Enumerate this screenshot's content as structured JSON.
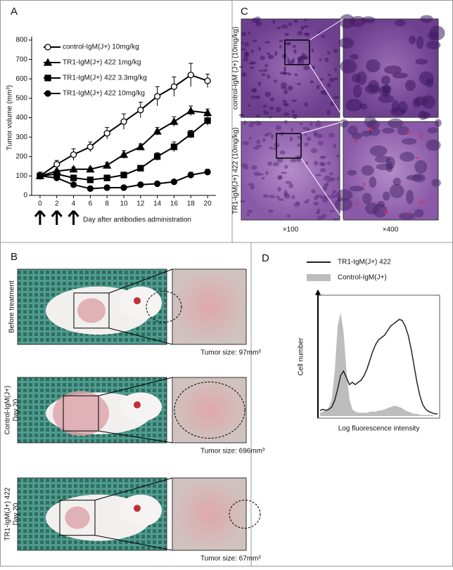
{
  "panel_labels": [
    "A",
    "B",
    "C",
    "D"
  ],
  "chart_data": [
    {
      "type": "line",
      "ylabel": "Tumor volume (mm³)",
      "xlabel": "Day after antibodies administration",
      "x": [
        0,
        2,
        4,
        6,
        8,
        10,
        12,
        14,
        16,
        18,
        20
      ],
      "xlim": [
        -1,
        21
      ],
      "xticks": [
        0,
        2,
        4,
        6,
        8,
        10,
        12,
        14,
        16,
        18,
        20
      ],
      "ylim": [
        0,
        800
      ],
      "yticks": [
        0,
        100,
        200,
        300,
        400,
        500,
        600,
        700,
        800
      ],
      "arrows_x": [
        0,
        2,
        4
      ],
      "legend": "upper left",
      "series": [
        {
          "name": "control-IgM(J+) 10mg/kg",
          "color": "#000000",
          "marker": "open-circle",
          "values": [
            100,
            160,
            210,
            250,
            320,
            380,
            440,
            510,
            560,
            620,
            590
          ],
          "errors": [
            20,
            20,
            30,
            25,
            30,
            40,
            40,
            50,
            50,
            60,
            35
          ]
        },
        {
          "name": "TR1-IgM(J+) 422  1mg/kg",
          "color": "#000000",
          "marker": "triangle",
          "values": [
            100,
            125,
            135,
            135,
            155,
            210,
            250,
            330,
            380,
            435,
            425
          ],
          "errors": [
            10,
            10,
            10,
            10,
            15,
            20,
            15,
            20,
            25,
            25,
            20
          ]
        },
        {
          "name": "TR1-IgM(J+) 422  3.3mg/kg",
          "color": "#000000",
          "marker": "square",
          "values": [
            100,
            110,
            90,
            80,
            90,
            105,
            140,
            200,
            250,
            315,
            385
          ],
          "errors": [
            10,
            10,
            10,
            10,
            10,
            10,
            10,
            20,
            25,
            20,
            25
          ]
        },
        {
          "name": "TR1-IgM(J+) 422  10mg/kg",
          "color": "#000000",
          "marker": "filled-circle",
          "values": [
            100,
            90,
            55,
            35,
            40,
            40,
            55,
            60,
            70,
            105,
            120
          ],
          "errors": [
            10,
            10,
            10,
            5,
            5,
            5,
            5,
            5,
            10,
            15,
            15
          ]
        }
      ]
    },
    {
      "type": "line",
      "ylabel": "Cell number",
      "xlabel": "Log fluorescence intensity",
      "x": [
        0,
        1,
        2,
        3,
        4,
        5,
        6,
        7,
        8,
        9,
        10,
        11,
        12,
        13,
        14,
        15,
        16,
        17,
        18,
        19,
        20,
        21,
        22,
        23,
        24,
        25,
        26,
        27,
        28,
        29,
        30,
        31,
        32,
        33,
        34,
        35,
        36,
        37,
        38,
        39,
        40
      ],
      "xlim": [
        0,
        40
      ],
      "ylim": [
        0,
        100
      ],
      "legend": "above",
      "series": [
        {
          "name": "TR1-IgM(J+) 422",
          "color": "#222222",
          "fill": false,
          "values": [
            5,
            6,
            5,
            6,
            8,
            14,
            24,
            36,
            40,
            34,
            28,
            30,
            28,
            30,
            32,
            36,
            42,
            50,
            58,
            64,
            68,
            70,
            72,
            76,
            80,
            82,
            84,
            86,
            85,
            80,
            72,
            60,
            45,
            30,
            18,
            10,
            6,
            4,
            3,
            2,
            2
          ]
        },
        {
          "name": "Control-IgM(J+)",
          "color": "#bdbdbd",
          "fill": true,
          "values": [
            3,
            4,
            5,
            8,
            15,
            40,
            80,
            92,
            75,
            40,
            15,
            6,
            4,
            3,
            3,
            3,
            3,
            4,
            4,
            4,
            5,
            5,
            6,
            7,
            8,
            9,
            9,
            8,
            7,
            5,
            4,
            3,
            2,
            2,
            1,
            1,
            1,
            1,
            1,
            0,
            0
          ]
        }
      ]
    }
  ],
  "panel_b": {
    "rows": [
      {
        "label": [
          "Before treatment"
        ],
        "tumor_size": "Tumor size: 97mm³"
      },
      {
        "label": [
          "Control-IgM(J+)",
          "Day 20"
        ],
        "tumor_size": "Tumor size: 696mm³"
      },
      {
        "label": [
          "TR1-IgM(J+) 422",
          "Day 20"
        ],
        "tumor_size": "Tumor size: 67mm³"
      }
    ]
  },
  "panel_c": {
    "rows": [
      "control-IgM (J+) (10mg/kg)",
      "TR1-IgM(J+) 422 (10mg/kg)"
    ],
    "columns": [
      "×100",
      "×400"
    ]
  }
}
